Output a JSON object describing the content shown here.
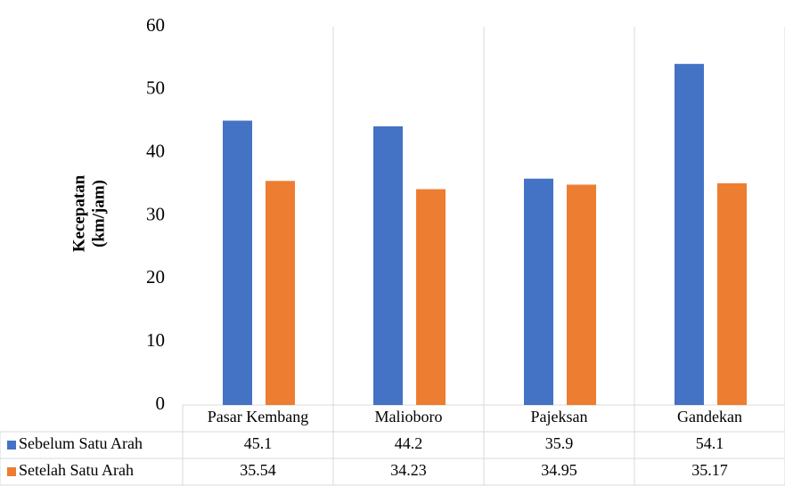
{
  "chart_data": {
    "type": "bar",
    "y_label": [
      "Kecepatan",
      "(km/jam)"
    ],
    "categories": [
      "Pasar Kembang",
      "Malioboro",
      "Pajeksan",
      "Gandekan"
    ],
    "series": [
      {
        "name": "Sebelum Satu Arah",
        "color": "#4472c4",
        "values": [
          45.1,
          44.2,
          35.9,
          54.1
        ]
      },
      {
        "name": "Setelah Satu Arah",
        "color": "#ed7d31",
        "values": [
          35.54,
          34.23,
          34.95,
          35.17
        ]
      }
    ],
    "ylim": [
      0,
      60
    ],
    "yticks": [
      0,
      10,
      20,
      30,
      40,
      50,
      60
    ]
  }
}
